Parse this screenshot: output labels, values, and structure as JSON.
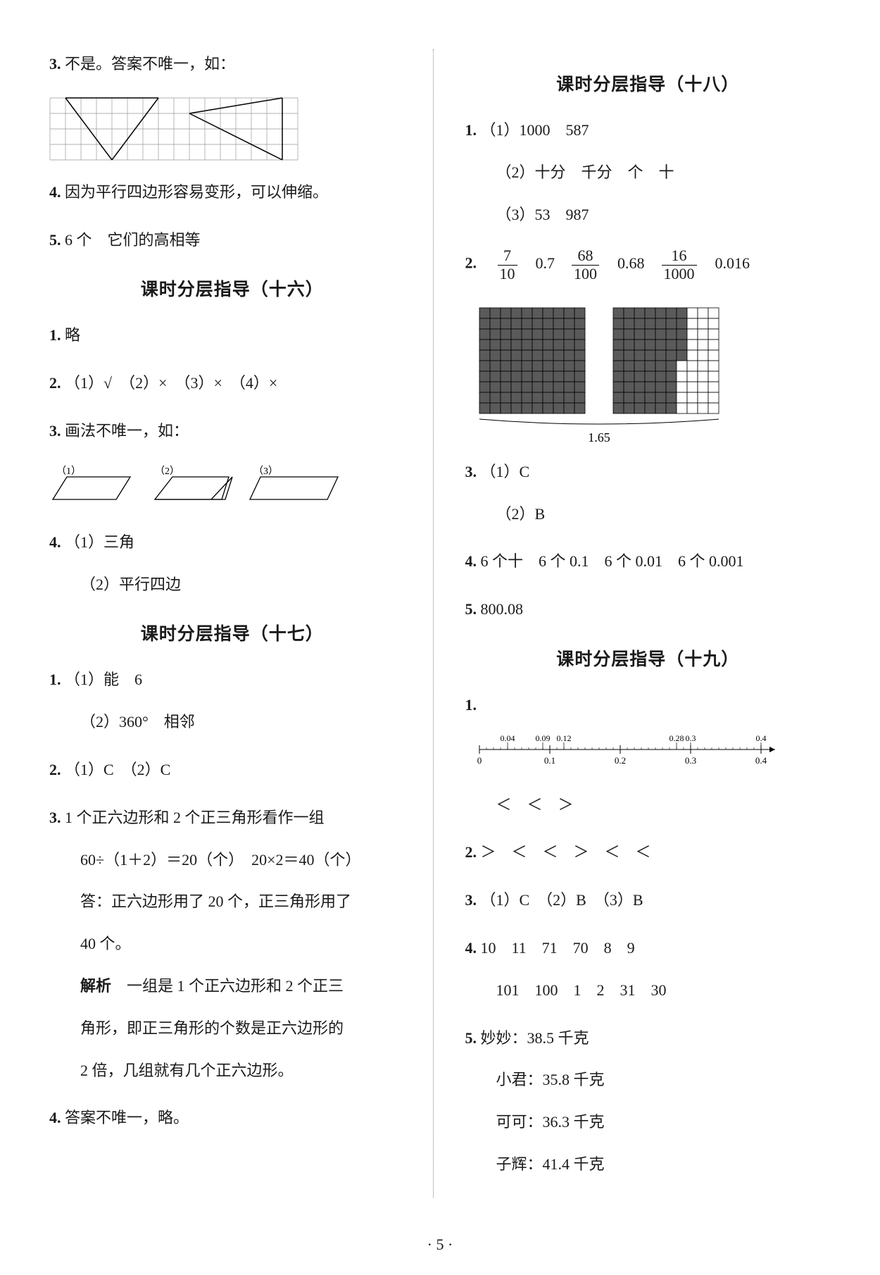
{
  "left": {
    "q3": "不是。答案不唯一，如：",
    "grid": {
      "cols": 16,
      "rows": 4,
      "cell": 22,
      "strokes": [
        [
          1,
          0,
          4,
          4
        ],
        [
          4,
          4,
          7,
          0
        ],
        [
          1,
          0,
          7,
          0
        ],
        [
          9,
          1,
          15,
          0
        ],
        [
          15,
          0,
          15,
          4
        ],
        [
          15,
          4,
          9,
          1
        ]
      ]
    },
    "q4": "因为平行四边形容易变形，可以伸缩。",
    "q5": "6 个　它们的高相等",
    "h16": "课时分层指导（十六）",
    "s16_1": "略",
    "s16_2": "（1）√　（2）×　（3）×　（4）×",
    "s16_3": "画法不唯一，如：",
    "shapes_labels": [
      "（1）",
      "（2）",
      "（3）"
    ],
    "s16_4a": "（1）三角",
    "s16_4b": "（2）平行四边",
    "h17": "课时分层指导（十七）",
    "s17_1a": "（1）能　6",
    "s17_1b": "（2）360°　相邻",
    "s17_2": "（1）C　（2）C",
    "s17_3a": "1 个正六边形和 2 个正三角形看作一组",
    "s17_3b": "60÷（1＋2）＝20（个）　20×2＝40（个）",
    "s17_3c": "答：正六边形用了 20 个，正三角形用了",
    "s17_3d": "40 个。",
    "s17_3e_label": "解析",
    "s17_3e": "　一组是 1 个正六边形和 2 个正三",
    "s17_3f": "角形，即正三角形的个数是正六边形的",
    "s17_3g": "2 倍，几组就有几个正六边形。",
    "s17_4": "答案不唯一，略。"
  },
  "right": {
    "h18": "课时分层指导（十八）",
    "s18_1a": "（1）1000　587",
    "s18_1b": "（2）十分　千分　个　十",
    "s18_1c": "（3）53　987",
    "s18_2_fracs": [
      {
        "n": "7",
        "d": "10"
      },
      "0.7",
      {
        "n": "68",
        "d": "100"
      },
      "0.68",
      {
        "n": "16",
        "d": "1000"
      },
      "0.016"
    ],
    "grid100": {
      "size": 10,
      "cell": 15,
      "fill1": 100,
      "fill2": 65,
      "label": "1.65"
    },
    "s18_3a": "（1）C",
    "s18_3b": "（2）B",
    "s18_4": "6 个十　6 个 0.1　6 个 0.01　6 个 0.001",
    "s18_5": "800.08",
    "h19": "课时分层指导（十九）",
    "numline_top": [
      "0.04",
      "0.09",
      "0.12",
      "",
      "0.28",
      "0.3",
      "",
      "0.4"
    ],
    "numline_bot": [
      "0",
      "0.1",
      "0.2",
      "0.3",
      "0.4"
    ],
    "s19_1b": "＜　＜　＞",
    "s19_2": "＞　＜　＜　＞　＜　＜",
    "s19_3": "（1）C　（2）B　（3）B",
    "s19_4a": "10　11　71　70　8　9",
    "s19_4b": "101　100　1　2　31　30",
    "s19_5a": "妙妙：38.5 千克",
    "s19_5b": "小君：35.8 千克",
    "s19_5c": "可可：36.3 千克",
    "s19_5d": "子辉：41.4 千克"
  },
  "pageno": "· 5 ·"
}
